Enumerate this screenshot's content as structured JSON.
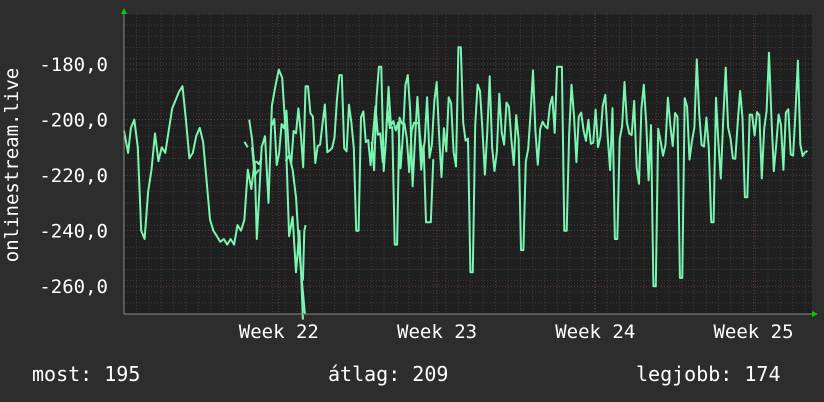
{
  "colors": {
    "background": "#2d2d2d",
    "plot_background": "#1f1f1f",
    "line": "#7af5b2",
    "grid_minor": "#3c3c3c",
    "grid_major": "#6a3a3a",
    "axis": "#8a8a8a",
    "arrow": "#00cc00",
    "text": "#ffffff"
  },
  "chart_data": {
    "type": "line",
    "ylabel": "onlinestream.live",
    "y_ticks": [
      "-180,0",
      "-200,0",
      "-220,0",
      "-240,0",
      "-260,0"
    ],
    "y_tick_values": [
      -180,
      -200,
      -220,
      -240,
      -260
    ],
    "ylim": [
      -270,
      -162
    ],
    "x_ticks": [
      "Week 22",
      "Week 23",
      "Week 24",
      "Week 25"
    ],
    "xlim": [
      0,
      100
    ],
    "x_tick_values": [
      22.5,
      45.5,
      68.5,
      91.5
    ],
    "grid": true,
    "series": [
      {
        "values": [
          [
            0.0,
            -204
          ],
          [
            0.6,
            -212
          ],
          [
            1.0,
            -203
          ],
          [
            1.5,
            -200
          ],
          [
            2.0,
            -210
          ],
          [
            2.5,
            -240
          ],
          [
            3.0,
            -243
          ],
          [
            3.5,
            -226
          ],
          [
            4.0,
            -218
          ],
          [
            4.5,
            -205
          ],
          [
            5.0,
            -215
          ],
          [
            5.5,
            -210
          ],
          [
            6.0,
            -212
          ],
          [
            6.5,
            -204
          ],
          [
            7.0,
            -196
          ],
          [
            7.5,
            -193
          ],
          [
            8.0,
            -190
          ],
          [
            8.5,
            -188
          ],
          [
            9.0,
            -200
          ],
          [
            9.5,
            -214
          ],
          [
            10.0,
            -212
          ],
          [
            10.5,
            -206
          ],
          [
            11.0,
            -203
          ],
          [
            11.5,
            -208
          ],
          [
            12.0,
            -222
          ],
          [
            12.5,
            -236
          ],
          [
            13.0,
            -240
          ],
          [
            13.5,
            -242
          ],
          [
            14.0,
            -244
          ],
          [
            14.5,
            -243
          ],
          [
            15.0,
            -245
          ],
          [
            15.5,
            -243
          ],
          [
            16.0,
            -245
          ],
          [
            16.5,
            -238
          ],
          [
            17.0,
            -240
          ],
          [
            17.5,
            -236
          ],
          [
            18.0,
            -218
          ],
          [
            18.5,
            -225
          ],
          [
            19.0,
            -215
          ],
          [
            19.3,
            -243
          ],
          [
            19.7,
            -225
          ],
          [
            20.0,
            -210
          ],
          [
            20.5,
            -206
          ],
          [
            21.0,
            -230
          ],
          [
            21.5,
            -195
          ],
          [
            22.0,
            -188
          ],
          [
            22.5,
            -182
          ],
          [
            23.0,
            -185
          ],
          [
            23.5,
            -205
          ],
          [
            24.0,
            -242
          ],
          [
            24.5,
            -235
          ],
          [
            25.0,
            -255
          ],
          [
            25.5,
            -240
          ],
          [
            26.0,
            -272
          ],
          null,
          [
            18.2,
            -200
          ],
          [
            18.6,
            -207
          ],
          [
            19.0,
            -218
          ],
          null,
          [
            18.6,
            -210
          ],
          [
            19.0,
            -220
          ],
          [
            19.6,
            -218
          ],
          null,
          [
            23.5,
            -215
          ],
          [
            24.0,
            -213
          ],
          [
            24.5,
            -218
          ],
          [
            25.0,
            -228
          ],
          [
            25.5,
            -248
          ],
          [
            26.3,
            -270
          ],
          null,
          [
            26.0,
            -258
          ],
          [
            26.2,
            -240
          ],
          [
            26.4,
            -238
          ],
          null,
          [
            19.2,
            -215
          ],
          [
            19.6,
            -216
          ],
          [
            20.0,
            -214
          ],
          null,
          [
            17.5,
            -208
          ],
          [
            18.0,
            -210
          ],
          null
        ]
      }
    ],
    "summary": {
      "now_label": "most:",
      "now_value": "195",
      "avg_label": "átlag:",
      "avg_value": "209",
      "max_label": "legjobb:",
      "max_value": "174"
    }
  },
  "footer": {
    "now": "most: 195",
    "avg": "átlag: 209",
    "max": "legjobb: 174"
  }
}
